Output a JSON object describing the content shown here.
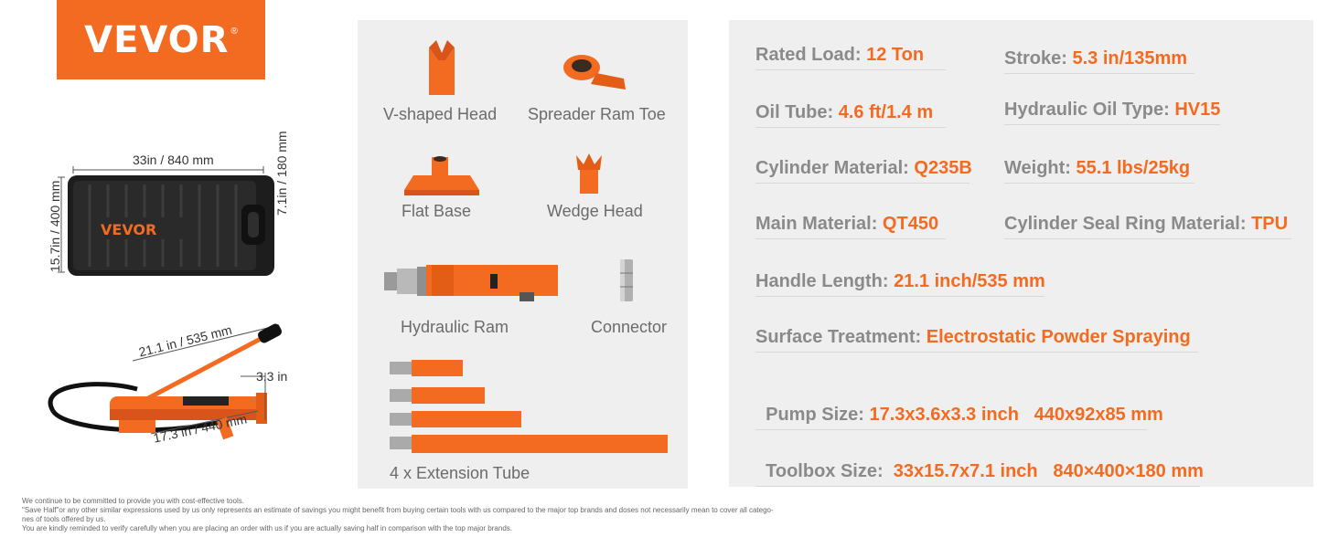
{
  "logo": {
    "text": "VEVOR",
    "reg": "®"
  },
  "toolbox": {
    "width_label": "33in / 840 mm",
    "depth_label": "15.7in / 400 mm",
    "height_label": "7.1in / 180 mm",
    "brand": "VEVOR"
  },
  "pump": {
    "handle_label": "21.1 in / 535 mm",
    "diameter_label": "3.3 in",
    "length_label": "17.3 in / 440 mm"
  },
  "parts": {
    "v_head": "V-shaped Head",
    "spreader_toe": "Spreader Ram Toe",
    "flat_base": "Flat Base",
    "wedge_head": "Wedge Head",
    "hydraulic_ram": "Hydraulic Ram",
    "connector": "Connector",
    "extension": "4 x Extension Tube"
  },
  "specs": {
    "rated_load": {
      "label": "Rated Load: ",
      "value": "12 Ton"
    },
    "stroke": {
      "label": "Stroke: ",
      "value": "5.3 in/135mm"
    },
    "oil_tube": {
      "label": "Oil Tube: ",
      "value": "4.6 ft/1.4 m"
    },
    "oil_type": {
      "label": "Hydraulic Oil Type: ",
      "value": "HV15"
    },
    "cyl_material": {
      "label": "Cylinder Material: ",
      "value": "Q235B"
    },
    "weight": {
      "label": "Weight: ",
      "value": "55.1 lbs/25kg"
    },
    "main_material": {
      "label": "Main Material: ",
      "value": "QT450"
    },
    "seal_ring": {
      "label": "Cylinder Seal Ring Material: ",
      "value": "TPU"
    },
    "handle_length": {
      "label": "Handle Length: ",
      "value": "21.1 inch/535 mm"
    },
    "surface": {
      "label": "Surface Treatment: ",
      "value": "Electrostatic Powder Spraying"
    },
    "pump_size": {
      "label": "Pump Size: ",
      "value": "17.3x3.6x3.3 inch   440x92x85 mm"
    },
    "toolbox_size": {
      "label": "Toolbox Size: ",
      "value": " 33x15.7x7.1 inch   840×400×180 mm"
    }
  },
  "disclaimer": {
    "line1": "We continue to be committed to provide you with cost-effective tools.",
    "line2": "\"Save Half\"or any other similar expressions used by us only represents an estimate of savings you might benefit from buying certain tools with us compared to the major top brands and doses not necessarily mean to cover all catego-",
    "line3": "nes of tools offered by us.",
    "line4": "You are kindly reminded to verify carefully when you are placing an order with us if you are actually saving half in comparison with the top major brands."
  },
  "colors": {
    "accent": "#f26b21",
    "panel": "#efefef",
    "label_gray": "#8a8a8a"
  }
}
